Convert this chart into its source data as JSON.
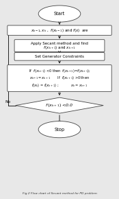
{
  "bg_color": "#e8e8e8",
  "box_bg": "#ffffff",
  "box_edge": "#444444",
  "arrow_color": "#222222",
  "start_text": "Start",
  "stop_text": "Stop",
  "box1_text": "$x_{k-1}, x_k$ ,  $f(x_{k-1})$ and $f(x)$  are",
  "box2_line1": "Apply Secant method and find",
  "box2_line2": "$f\\,(x_{k+1})$ and $x_{k+1}$",
  "box3_text": "Set Generator Constraints",
  "box4_line1": "If  $f(x_{k+1})$ <0 then  $f(x_{k-1})$=$f(x_{k+1})$;",
  "box4_line2": "$x_{k-1} = x_{k+1}$       If  $f(x_{k+1})$ >0 then",
  "box4_line3": "$f(x_k)$ = $f(x_{k+1})$ ;            $x_k = x_{k+1}$",
  "diamond_text": "$f\\,(x_{k+1})$ <0.0",
  "no_label": "No",
  "caption": "Fig 2 Flow chart of Secant method for PD problem"
}
